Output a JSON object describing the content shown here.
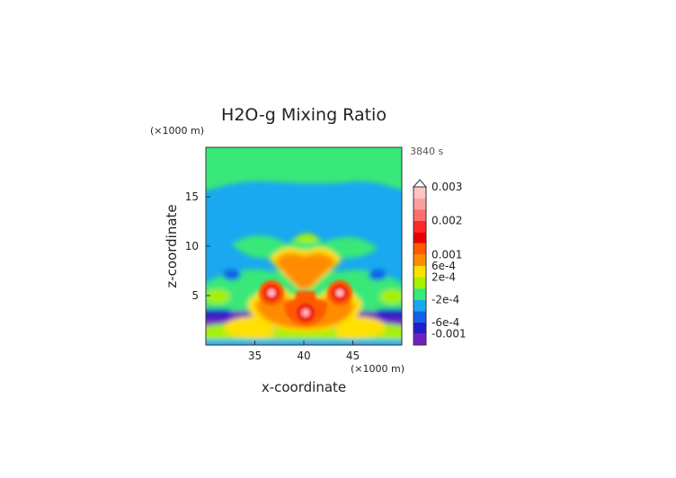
{
  "chart_data": {
    "type": "heatmap",
    "title": "H2O-g Mixing Ratio",
    "xlabel": "x-coordinate",
    "ylabel": "z-coordinate",
    "x_unit": "(×1000 m)",
    "y_unit": "(×1000 m)",
    "time_label": "3840 s",
    "xlim": [
      30,
      50
    ],
    "ylim": [
      0,
      20
    ],
    "x_ticks": [
      35,
      40,
      45
    ],
    "y_ticks": [
      5,
      10,
      15
    ],
    "colorbar": {
      "levels": [
        {
          "label": "0.003",
          "color": "#ffc4c4"
        },
        {
          "label": "",
          "color": "#ff9e9e"
        },
        {
          "label": "",
          "color": "#ff6e6e"
        },
        {
          "label": "0.002",
          "color": "#ff2828"
        },
        {
          "label": "",
          "color": "#e80000"
        },
        {
          "label": "",
          "color": "#ff5a00"
        },
        {
          "label": "0.001",
          "color": "#ff8c00"
        },
        {
          "label": "6e-4",
          "color": "#ffe000"
        },
        {
          "label": "2e-4",
          "color": "#a6f000"
        },
        {
          "label": "",
          "color": "#38e878"
        },
        {
          "label": "-2e-4",
          "color": "#1aa8f0"
        },
        {
          "label": "",
          "color": "#1060e8"
        },
        {
          "label": "-6e-4",
          "color": "#2020c8"
        },
        {
          "label": "-0.001",
          "color": "#7020c0"
        }
      ],
      "extend_top": true
    }
  }
}
